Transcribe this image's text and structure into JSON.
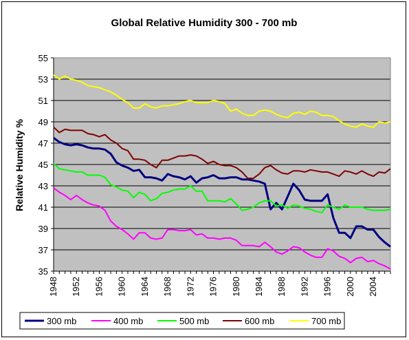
{
  "chart_data": {
    "type": "line",
    "title": "Global Relative Humidity 300 - 700 mb",
    "xlabel": "",
    "ylabel": "Relative Humidity %",
    "xlim": [
      1948,
      2007
    ],
    "ylim": [
      35,
      55
    ],
    "yticks": [
      35,
      37,
      39,
      41,
      43,
      45,
      47,
      49,
      51,
      53,
      55
    ],
    "xticks": [
      1948,
      1952,
      1956,
      1960,
      1964,
      1968,
      1972,
      1976,
      1980,
      1984,
      1988,
      1992,
      1996,
      2000,
      2004
    ],
    "grid": "horizontal",
    "legend_position": "bottom",
    "x": [
      1948,
      1949,
      1950,
      1951,
      1952,
      1953,
      1954,
      1955,
      1956,
      1957,
      1958,
      1959,
      1960,
      1961,
      1962,
      1963,
      1964,
      1965,
      1966,
      1967,
      1968,
      1969,
      1970,
      1971,
      1972,
      1973,
      1974,
      1975,
      1976,
      1977,
      1978,
      1979,
      1980,
      1981,
      1982,
      1983,
      1984,
      1985,
      1986,
      1987,
      1988,
      1989,
      1990,
      1991,
      1992,
      1993,
      1994,
      1995,
      1996,
      1997,
      1998,
      1999,
      2000,
      2001,
      2002,
      2003,
      2004,
      2005,
      2006,
      2007
    ],
    "series": [
      {
        "name": "300 mb",
        "color": "#000080",
        "values": [
          47.5,
          47.1,
          46.9,
          46.8,
          46.9,
          46.8,
          46.6,
          46.5,
          46.5,
          46.4,
          46.0,
          45.2,
          44.9,
          44.7,
          44.4,
          44.5,
          43.8,
          43.8,
          43.7,
          43.5,
          44.1,
          43.9,
          43.8,
          43.6,
          43.9,
          43.3,
          43.7,
          43.8,
          44.0,
          43.7,
          43.7,
          43.8,
          43.8,
          43.6,
          43.6,
          43.5,
          43.4,
          43.2,
          40.8,
          41.4,
          40.8,
          42.0,
          43.2,
          42.6,
          41.7,
          41.6,
          41.6,
          41.6,
          42.2,
          40.0,
          38.6,
          38.6,
          38.1,
          39.2,
          39.2,
          38.9,
          38.9,
          38.2,
          37.7,
          37.3
        ]
      },
      {
        "name": "400 mb",
        "color": "#ff00ff",
        "values": [
          42.8,
          42.4,
          42.1,
          41.7,
          42.1,
          41.7,
          41.4,
          41.2,
          41.1,
          40.7,
          39.7,
          39.2,
          38.9,
          38.5,
          38.0,
          38.6,
          38.6,
          38.1,
          38.0,
          38.1,
          38.9,
          38.9,
          38.8,
          38.8,
          38.9,
          38.4,
          38.5,
          38.1,
          38.1,
          38.0,
          38.1,
          38.1,
          37.9,
          37.4,
          37.4,
          37.4,
          37.3,
          37.7,
          37.3,
          36.8,
          36.6,
          36.9,
          37.3,
          37.2,
          36.8,
          36.5,
          36.3,
          36.3,
          37.1,
          36.9,
          36.4,
          36.2,
          35.8,
          36.2,
          36.3,
          35.9,
          36.0,
          35.7,
          35.5,
          35.2
        ]
      },
      {
        "name": "500 mb",
        "color": "#00ff00",
        "values": [
          45.1,
          44.6,
          44.5,
          44.4,
          44.3,
          44.3,
          44.0,
          44.0,
          44.0,
          43.8,
          43.1,
          42.9,
          42.6,
          42.5,
          41.9,
          42.4,
          42.2,
          41.6,
          41.8,
          42.3,
          42.4,
          42.6,
          42.7,
          42.7,
          43.0,
          42.5,
          42.5,
          41.6,
          41.6,
          41.6,
          41.5,
          41.8,
          41.3,
          40.7,
          40.8,
          41.0,
          41.4,
          41.6,
          41.6,
          41.1,
          41.2,
          40.9,
          41.2,
          41.1,
          40.9,
          40.8,
          40.6,
          40.5,
          41.2,
          41.0,
          40.8,
          41.2,
          41.0,
          41.0,
          41.0,
          40.8,
          40.7,
          40.7,
          40.7,
          40.8
        ]
      },
      {
        "name": "600 mb",
        "color": "#800000",
        "values": [
          48.5,
          48.0,
          48.3,
          48.2,
          48.2,
          48.2,
          47.9,
          47.8,
          47.6,
          47.8,
          47.3,
          47.0,
          46.5,
          46.3,
          45.5,
          45.5,
          45.4,
          45.0,
          44.7,
          45.4,
          45.4,
          45.6,
          45.8,
          45.8,
          45.9,
          45.8,
          45.5,
          45.1,
          45.3,
          45.0,
          44.9,
          44.9,
          44.7,
          44.3,
          43.7,
          43.7,
          44.1,
          44.7,
          44.9,
          44.5,
          44.2,
          44.1,
          44.4,
          44.4,
          44.3,
          44.5,
          44.4,
          44.3,
          44.3,
          44.1,
          43.9,
          44.4,
          44.3,
          44.1,
          44.4,
          44.1,
          43.9,
          44.3,
          44.2,
          44.6
        ]
      },
      {
        "name": "700 mb",
        "color": "#ffff00",
        "values": [
          53.4,
          53.0,
          53.3,
          53.0,
          52.9,
          52.7,
          52.4,
          52.3,
          52.2,
          52.0,
          51.8,
          51.5,
          51.1,
          50.8,
          50.3,
          50.3,
          50.7,
          50.4,
          50.3,
          50.5,
          50.5,
          50.6,
          50.7,
          50.9,
          51.0,
          50.8,
          50.8,
          50.8,
          51.0,
          50.9,
          50.7,
          50.0,
          50.2,
          49.8,
          49.6,
          49.6,
          50.0,
          50.1,
          50.0,
          49.7,
          49.5,
          49.4,
          49.8,
          49.9,
          49.7,
          50.0,
          49.9,
          49.6,
          49.6,
          49.5,
          49.1,
          48.8,
          48.6,
          48.5,
          48.8,
          48.6,
          48.5,
          49.0,
          48.9,
          49.0
        ]
      }
    ]
  }
}
